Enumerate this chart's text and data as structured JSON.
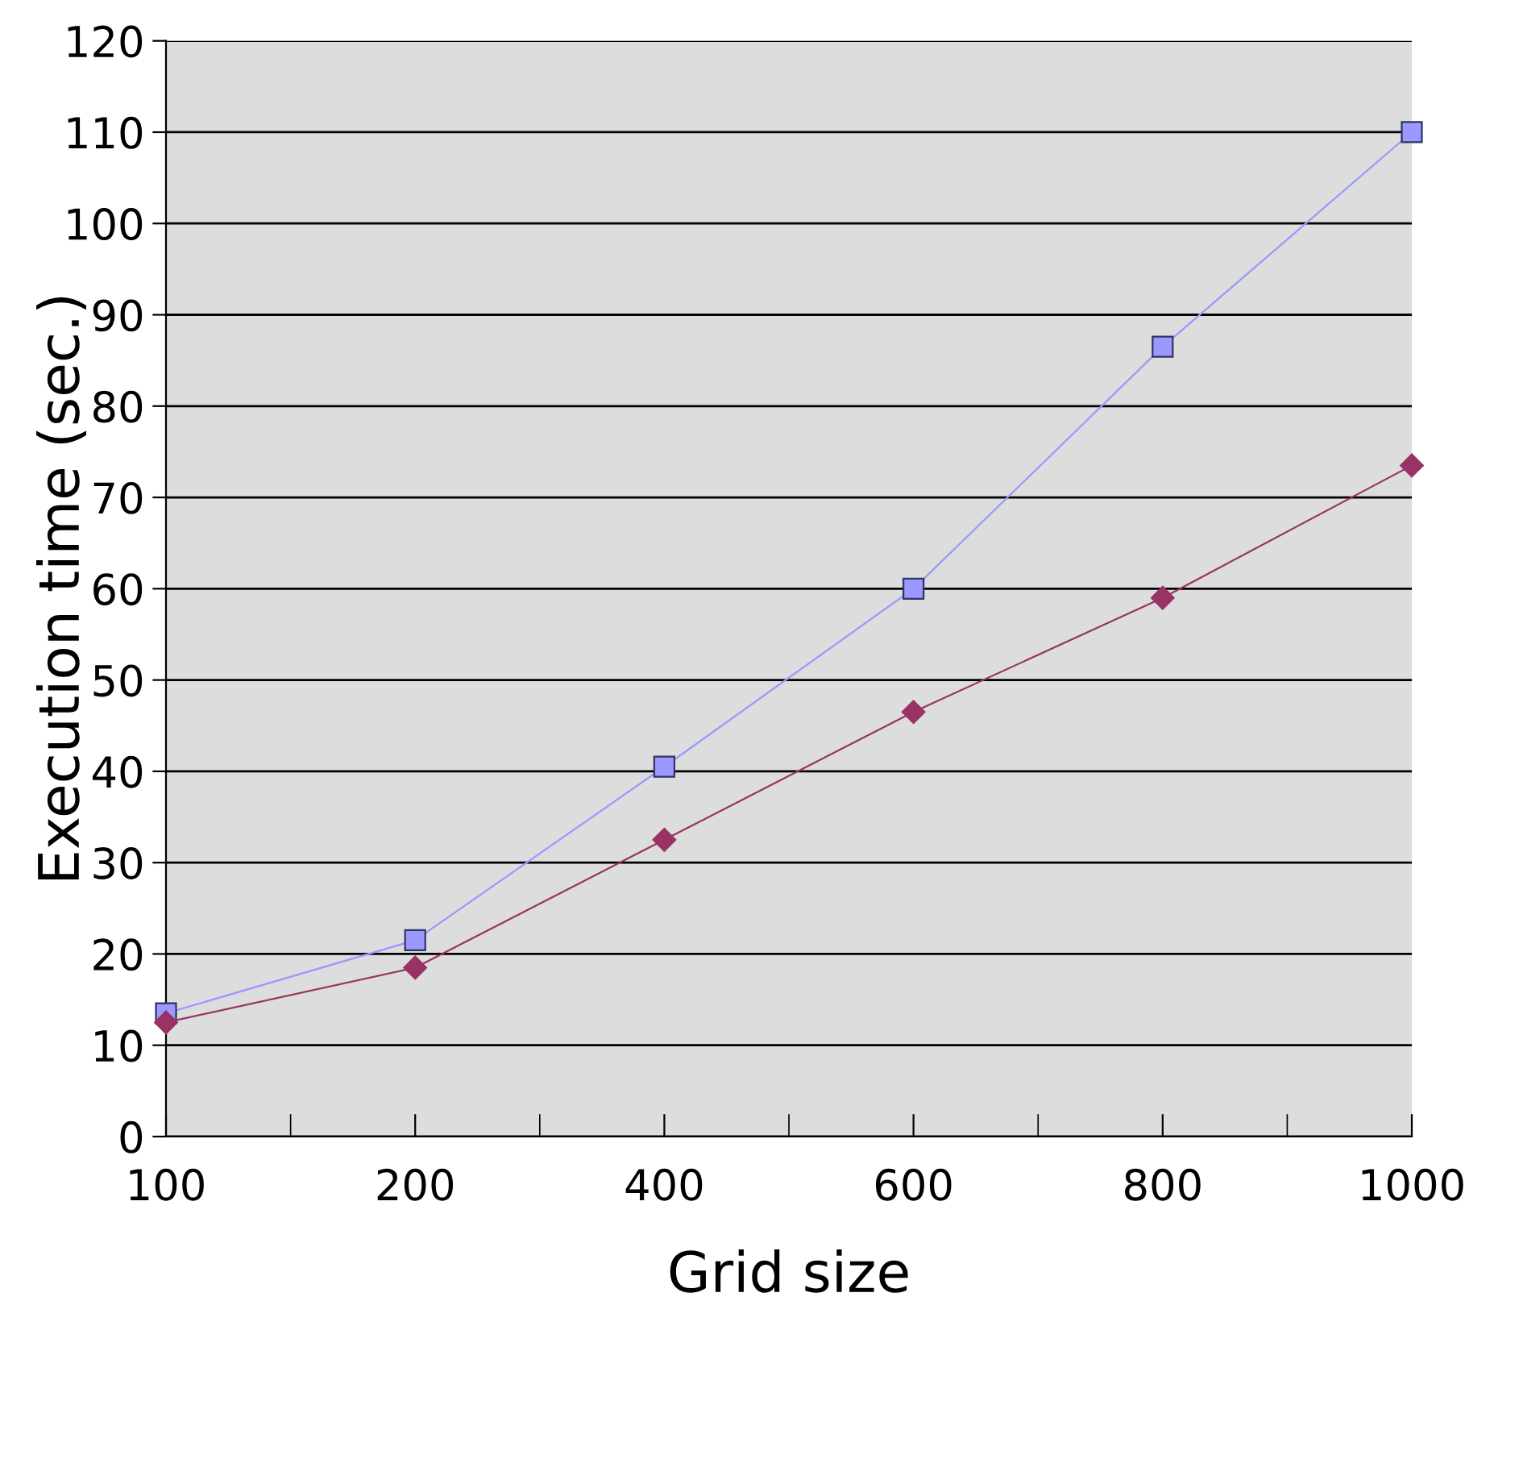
{
  "chart_data": {
    "type": "line",
    "xlabel": "Grid size",
    "ylabel": "Execution time (sec.)",
    "categories": [
      "100",
      "200",
      "400",
      "600",
      "800",
      "1000"
    ],
    "series": [
      {
        "color": "#9999ff",
        "marker": "square",
        "values": [
          13.5,
          21.5,
          40.5,
          60,
          86.5,
          110
        ]
      },
      {
        "color": "#993366",
        "marker": "diamond",
        "values": [
          12.5,
          18.5,
          32.5,
          46.5,
          59,
          73.5
        ]
      }
    ],
    "ylim": [
      0,
      120
    ],
    "yticks": [
      0,
      10,
      20,
      30,
      40,
      50,
      60,
      70,
      80,
      90,
      100,
      110,
      120
    ],
    "grid": "y"
  }
}
